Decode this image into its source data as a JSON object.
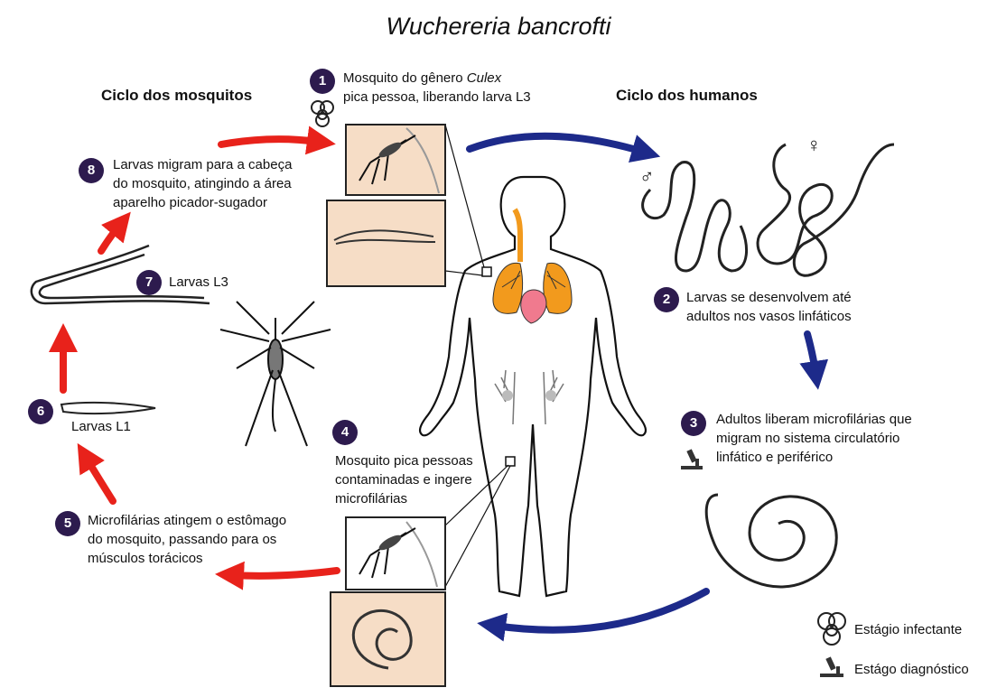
{
  "title": "Wuchereria bancrofti",
  "headings": {
    "mosquito_cycle": "Ciclo dos mosquitos",
    "human_cycle": "Ciclo dos humanos"
  },
  "steps": [
    {
      "n": "1",
      "lines": [
        "Mosquito do gênero Culex",
        "pica pessoa, liberando larva L3"
      ]
    },
    {
      "n": "2",
      "lines": [
        "Larvas se desenvolvem até",
        "adultos nos vasos linfáticos"
      ]
    },
    {
      "n": "3",
      "lines": [
        "Adultos liberam microfilárias que",
        "migram no sistema circulatório",
        "linfático e periférico"
      ]
    },
    {
      "n": "4",
      "lines": [
        "Mosquito pica pessoas",
        "contaminadas e ingere",
        "microfilárias"
      ]
    },
    {
      "n": "5",
      "lines": [
        "Microfilárias atingem o estômago",
        "do mosquito, passando para os",
        "músculos torácicos"
      ]
    },
    {
      "n": "6",
      "lines": [
        "Larvas L1"
      ]
    },
    {
      "n": "7",
      "lines": [
        "Larvas L3"
      ]
    },
    {
      "n": "8",
      "lines": [
        "Larvas migram para a cabeça",
        "do mosquito, atingindo a área",
        "aparelho picador-sugador"
      ]
    }
  ],
  "sex_symbols": {
    "male": "♂",
    "female": "♀"
  },
  "legend": {
    "infective": {
      "icon": "biohazard-icon",
      "label": "Estágio infectante"
    },
    "diagnostic": {
      "icon": "microscope-icon",
      "label": "Estágo diagnóstico"
    }
  },
  "colors": {
    "step_badge": "#2d1b4e",
    "mosquito_arrow": "#e8221b",
    "human_arrow": "#1d2a8a",
    "panel_bg": "#f6ddc6",
    "lung": "#f29a1d",
    "heart": "#f07a8e"
  }
}
